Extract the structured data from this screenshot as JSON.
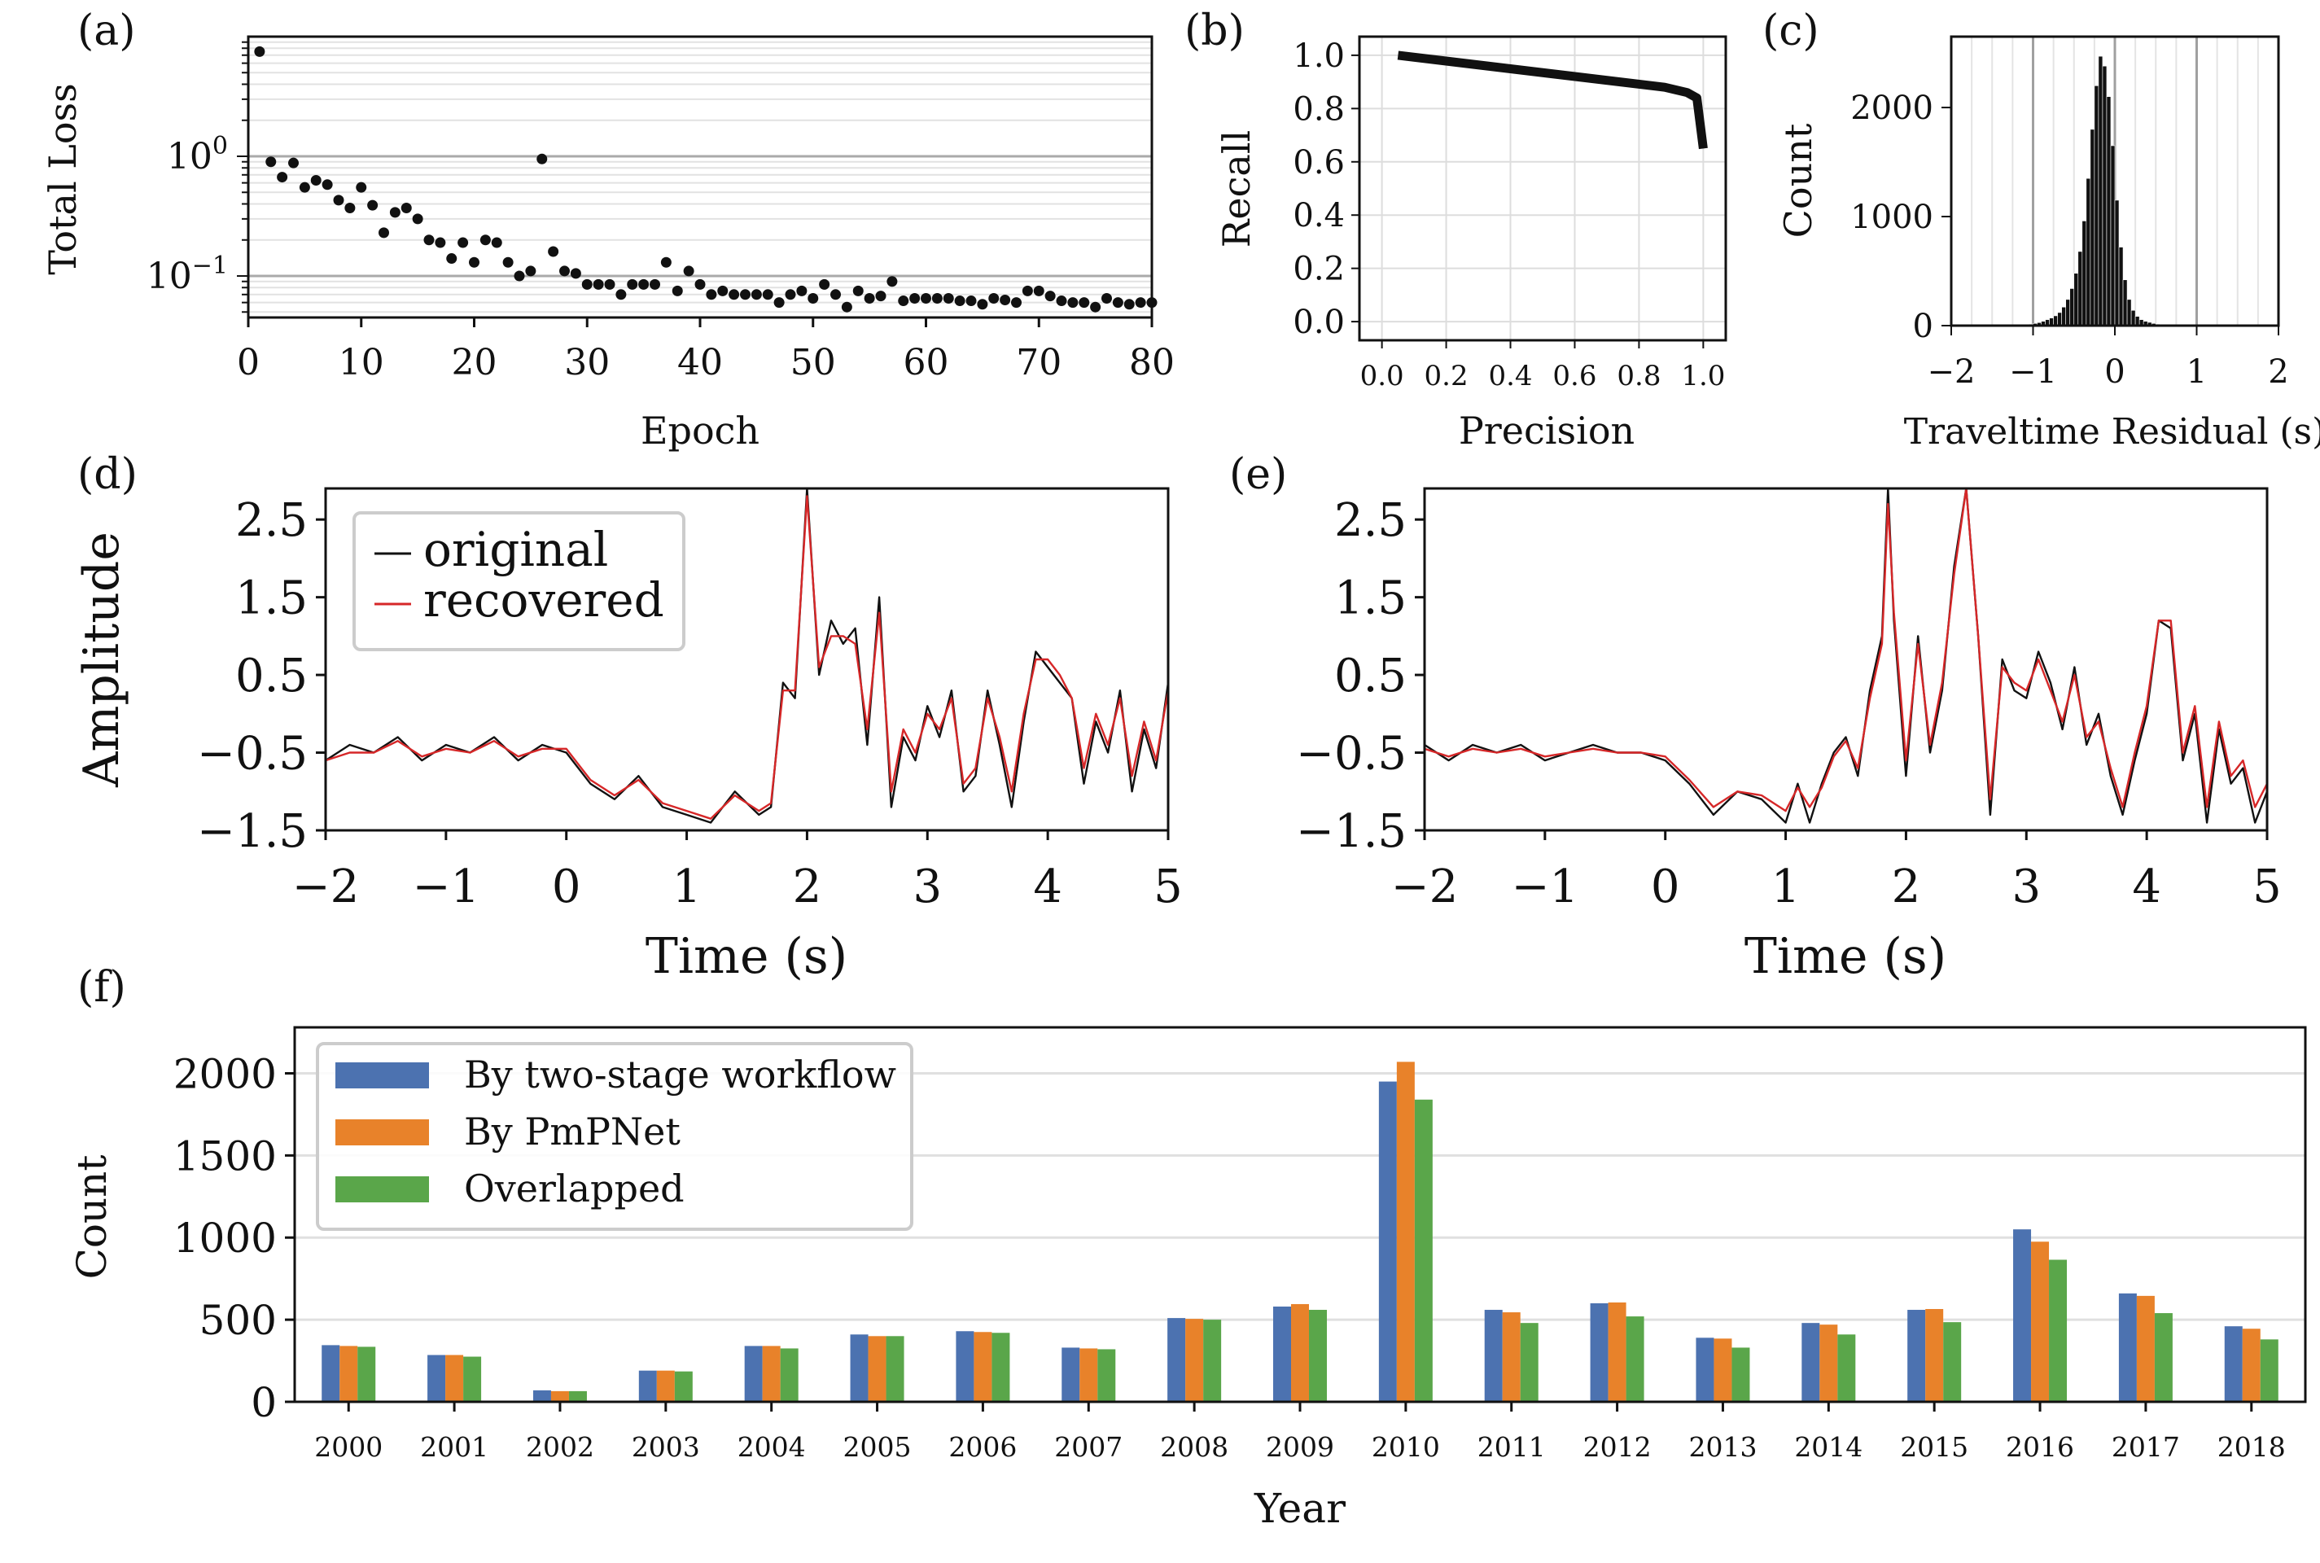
{
  "panels": {
    "a": {
      "letter": "(a)",
      "chart_data": {
        "type": "scatter",
        "xlabel": "Epoch",
        "ylabel": "Total Loss",
        "yscale": "log",
        "xlim": [
          0,
          80
        ],
        "ylim": [
          0.045,
          10
        ],
        "grid": "horizontal major and minor",
        "xticks": [
          0,
          10,
          20,
          30,
          40,
          50,
          60,
          70,
          80
        ],
        "yticks": [
          {
            "value": 1,
            "base": "10",
            "exp": "0"
          },
          {
            "value": 0.1,
            "base": "10",
            "exp": "−1"
          }
        ],
        "x": [
          1,
          2,
          3,
          4,
          5,
          6,
          7,
          8,
          9,
          10,
          11,
          12,
          13,
          14,
          15,
          16,
          17,
          18,
          19,
          20,
          21,
          22,
          23,
          24,
          25,
          26,
          27,
          28,
          29,
          30,
          31,
          32,
          33,
          34,
          35,
          36,
          37,
          38,
          39,
          40,
          41,
          42,
          43,
          44,
          45,
          46,
          47,
          48,
          49,
          50,
          51,
          52,
          53,
          54,
          55,
          56,
          57,
          58,
          59,
          60,
          61,
          62,
          63,
          64,
          65,
          66,
          67,
          68,
          69,
          70,
          71,
          72,
          73,
          74,
          75,
          76,
          77,
          78,
          79,
          80
        ],
        "y": [
          7.5,
          0.9,
          0.67,
          0.88,
          0.55,
          0.63,
          0.58,
          0.43,
          0.37,
          0.55,
          0.39,
          0.23,
          0.34,
          0.37,
          0.3,
          0.2,
          0.19,
          0.14,
          0.19,
          0.13,
          0.2,
          0.19,
          0.13,
          0.1,
          0.11,
          0.95,
          0.16,
          0.11,
          0.105,
          0.085,
          0.085,
          0.085,
          0.07,
          0.085,
          0.085,
          0.085,
          0.13,
          0.075,
          0.11,
          0.085,
          0.07,
          0.075,
          0.07,
          0.07,
          0.07,
          0.07,
          0.06,
          0.07,
          0.075,
          0.065,
          0.085,
          0.07,
          0.055,
          0.075,
          0.065,
          0.068,
          0.09,
          0.062,
          0.065,
          0.065,
          0.065,
          0.065,
          0.062,
          0.062,
          0.058,
          0.065,
          0.063,
          0.06,
          0.075,
          0.075,
          0.068,
          0.062,
          0.06,
          0.06,
          0.055,
          0.065,
          0.06,
          0.058,
          0.06,
          0.06
        ]
      }
    },
    "b": {
      "letter": "(b)",
      "chart_data": {
        "type": "line",
        "xlabel": "Precision",
        "ylabel": "Recall",
        "xlim": [
          -0.07,
          1.07
        ],
        "ylim": [
          -0.07,
          1.07
        ],
        "grid": true,
        "xticks": [
          "0.0",
          "0.2",
          "0.4",
          "0.6",
          "0.8",
          "1.0"
        ],
        "yticks": [
          "0.0",
          "0.2",
          "0.4",
          "0.6",
          "0.8",
          "1.0"
        ],
        "x": [
          0.05,
          0.88,
          0.95,
          0.98,
          1.0
        ],
        "y": [
          1.0,
          0.88,
          0.86,
          0.84,
          0.65
        ]
      }
    },
    "c": {
      "letter": "(c)",
      "chart_data": {
        "type": "bar",
        "xlabel": "Traveltime Residual (s)",
        "ylabel": "Count",
        "xlim": [
          -2,
          2
        ],
        "ylim": [
          0,
          2650
        ],
        "grid": "vertical",
        "xticks": [
          "−2",
          "−1",
          "0",
          "1",
          "2"
        ],
        "yticks": [
          "0",
          "1000",
          "2000"
        ],
        "bin_width": 0.05,
        "bin_start": -1.3,
        "values": [
          2,
          3,
          5,
          8,
          10,
          14,
          20,
          28,
          40,
          55,
          70,
          90,
          120,
          170,
          240,
          340,
          480,
          680,
          960,
          1350,
          1800,
          2200,
          2470,
          2380,
          2100,
          1650,
          1150,
          720,
          420,
          240,
          140,
          85,
          55,
          40,
          30,
          20,
          14,
          10,
          8,
          6,
          5,
          3
        ]
      }
    },
    "d": {
      "letter": "(d)",
      "chart_data": {
        "type": "line",
        "xlabel": "Time (s)",
        "ylabel": "Amplitude",
        "xlim": [
          -2,
          5
        ],
        "ylim": [
          -1.5,
          2.9
        ],
        "xticks": [
          "−2",
          "−1",
          "0",
          "1",
          "2",
          "3",
          "4",
          "5"
        ],
        "yticks": [
          "−1.5",
          "−0.5",
          "0.5",
          "1.5",
          "2.5"
        ],
        "legend": {
          "position": "upper-left",
          "entries": [
            "original",
            "recovered"
          ]
        },
        "colors": {
          "original": "#111111",
          "recovered": "#d62728"
        },
        "t": [
          -2,
          -1.8,
          -1.6,
          -1.4,
          -1.2,
          -1,
          -0.8,
          -0.6,
          -0.4,
          -0.2,
          0,
          0.2,
          0.4,
          0.6,
          0.8,
          1,
          1.2,
          1.4,
          1.6,
          1.7,
          1.8,
          1.9,
          2,
          2.1,
          2.2,
          2.3,
          2.4,
          2.5,
          2.6,
          2.7,
          2.8,
          2.9,
          3,
          3.1,
          3.2,
          3.3,
          3.4,
          3.5,
          3.6,
          3.7,
          3.8,
          3.9,
          4,
          4.1,
          4.2,
          4.3,
          4.4,
          4.5,
          4.6,
          4.7,
          4.8,
          4.9,
          5
        ],
        "series": [
          {
            "name": "original",
            "values": [
              -0.6,
              -0.4,
              -0.5,
              -0.3,
              -0.6,
              -0.4,
              -0.5,
              -0.3,
              -0.6,
              -0.4,
              -0.5,
              -0.9,
              -1.1,
              -0.8,
              -1.2,
              -1.3,
              -1.4,
              -1.0,
              -1.3,
              -1.2,
              0.4,
              0.2,
              2.9,
              0.5,
              1.2,
              0.9,
              1.1,
              -0.4,
              1.5,
              -1.2,
              -0.3,
              -0.6,
              0.1,
              -0.3,
              0.3,
              -1.0,
              -0.8,
              0.3,
              -0.4,
              -1.2,
              -0.1,
              0.8,
              0.6,
              0.4,
              0.2,
              -0.9,
              -0.1,
              -0.5,
              0.3,
              -1.0,
              -0.2,
              -0.7,
              0.4
            ]
          },
          {
            "name": "recovered",
            "values": [
              -0.6,
              -0.5,
              -0.5,
              -0.35,
              -0.55,
              -0.45,
              -0.5,
              -0.35,
              -0.55,
              -0.45,
              -0.45,
              -0.85,
              -1.05,
              -0.85,
              -1.15,
              -1.25,
              -1.35,
              -1.05,
              -1.25,
              -1.15,
              0.3,
              0.3,
              2.8,
              0.6,
              1.0,
              1.0,
              0.9,
              -0.2,
              1.3,
              -1.0,
              -0.2,
              -0.5,
              0.0,
              -0.2,
              0.2,
              -0.9,
              -0.7,
              0.2,
              -0.3,
              -1.0,
              0.0,
              0.7,
              0.7,
              0.5,
              0.2,
              -0.7,
              0.0,
              -0.4,
              0.2,
              -0.8,
              -0.1,
              -0.6,
              0.3
            ]
          }
        ]
      }
    },
    "e": {
      "letter": "(e)",
      "chart_data": {
        "type": "line",
        "xlabel": "Time (s)",
        "ylabel": "",
        "xlim": [
          -2,
          5
        ],
        "ylim": [
          -1.5,
          2.9
        ],
        "xticks": [
          "−2",
          "−1",
          "0",
          "1",
          "2",
          "3",
          "4",
          "5"
        ],
        "yticks": [
          "−1.5",
          "−0.5",
          "0.5",
          "1.5",
          "2.5"
        ],
        "colors": {
          "original": "#111111",
          "recovered": "#d62728"
        },
        "t": [
          -2,
          -1.8,
          -1.6,
          -1.4,
          -1.2,
          -1,
          -0.8,
          -0.6,
          -0.4,
          -0.2,
          0,
          0.2,
          0.4,
          0.6,
          0.8,
          1,
          1.1,
          1.2,
          1.3,
          1.4,
          1.5,
          1.6,
          1.7,
          1.8,
          1.85,
          1.9,
          2,
          2.1,
          2.2,
          2.3,
          2.4,
          2.5,
          2.6,
          2.7,
          2.8,
          2.9,
          3,
          3.1,
          3.2,
          3.3,
          3.4,
          3.5,
          3.6,
          3.7,
          3.8,
          3.9,
          4,
          4.1,
          4.2,
          4.3,
          4.4,
          4.5,
          4.6,
          4.7,
          4.8,
          4.9,
          5
        ],
        "series": [
          {
            "name": "original",
            "values": [
              -0.4,
              -0.6,
              -0.4,
              -0.5,
              -0.4,
              -0.6,
              -0.5,
              -0.4,
              -0.5,
              -0.5,
              -0.6,
              -0.9,
              -1.3,
              -1.0,
              -1.1,
              -1.4,
              -0.9,
              -1.4,
              -0.9,
              -0.5,
              -0.3,
              -0.8,
              0.3,
              1.0,
              2.9,
              1.2,
              -0.8,
              1.0,
              -0.5,
              0.3,
              1.9,
              2.9,
              1.0,
              -1.3,
              0.7,
              0.3,
              0.2,
              0.8,
              0.4,
              -0.2,
              0.6,
              -0.4,
              0.0,
              -0.8,
              -1.3,
              -0.6,
              0.0,
              1.2,
              1.1,
              -0.6,
              0.0,
              -1.4,
              -0.2,
              -0.9,
              -0.7,
              -1.4,
              -1.0
            ]
          },
          {
            "name": "recovered",
            "values": [
              -0.45,
              -0.55,
              -0.45,
              -0.5,
              -0.45,
              -0.55,
              -0.5,
              -0.45,
              -0.5,
              -0.5,
              -0.55,
              -0.85,
              -1.2,
              -1.0,
              -1.05,
              -1.25,
              -0.95,
              -1.2,
              -0.95,
              -0.55,
              -0.35,
              -0.7,
              0.2,
              0.9,
              2.7,
              1.3,
              -0.6,
              0.9,
              -0.4,
              0.4,
              1.8,
              2.9,
              1.0,
              -1.1,
              0.6,
              0.4,
              0.3,
              0.7,
              0.3,
              -0.1,
              0.5,
              -0.3,
              -0.1,
              -0.7,
              -1.2,
              -0.5,
              0.1,
              1.2,
              1.2,
              -0.5,
              0.1,
              -1.2,
              -0.1,
              -0.8,
              -0.6,
              -1.2,
              -0.9
            ]
          }
        ]
      }
    },
    "f": {
      "letter": "(f)",
      "chart_data": {
        "type": "bar",
        "xlabel": "Year",
        "ylabel": "Count",
        "ylim": [
          0,
          2280
        ],
        "grid": "horizontal",
        "yticks": [
          "0",
          "500",
          "1000",
          "1500",
          "2000"
        ],
        "legend": {
          "position": "upper-left"
        },
        "categories": [
          "2000",
          "2001",
          "2002",
          "2003",
          "2004",
          "2005",
          "2006",
          "2007",
          "2008",
          "2009",
          "2010",
          "2011",
          "2012",
          "2013",
          "2014",
          "2015",
          "2016",
          "2017",
          "2018"
        ],
        "series": [
          {
            "name": "By two-stage workflow",
            "color": "#4c72b0",
            "values": [
              345,
              285,
              70,
              190,
              340,
              410,
              430,
              330,
              510,
              580,
              1950,
              560,
              600,
              390,
              480,
              560,
              1050,
              660,
              460
            ]
          },
          {
            "name": "By PmPNet",
            "color": "#e8822a",
            "values": [
              340,
              285,
              65,
              190,
              340,
              400,
              425,
              325,
              505,
              595,
              2070,
              545,
              605,
              385,
              470,
              565,
              975,
              645,
              445
            ]
          },
          {
            "name": "Overlapped",
            "color": "#5aa64a",
            "values": [
              335,
              275,
              65,
              185,
              325,
              400,
              420,
              320,
              500,
              560,
              1840,
              480,
              520,
              330,
              410,
              485,
              865,
              540,
              380
            ]
          }
        ]
      }
    }
  }
}
